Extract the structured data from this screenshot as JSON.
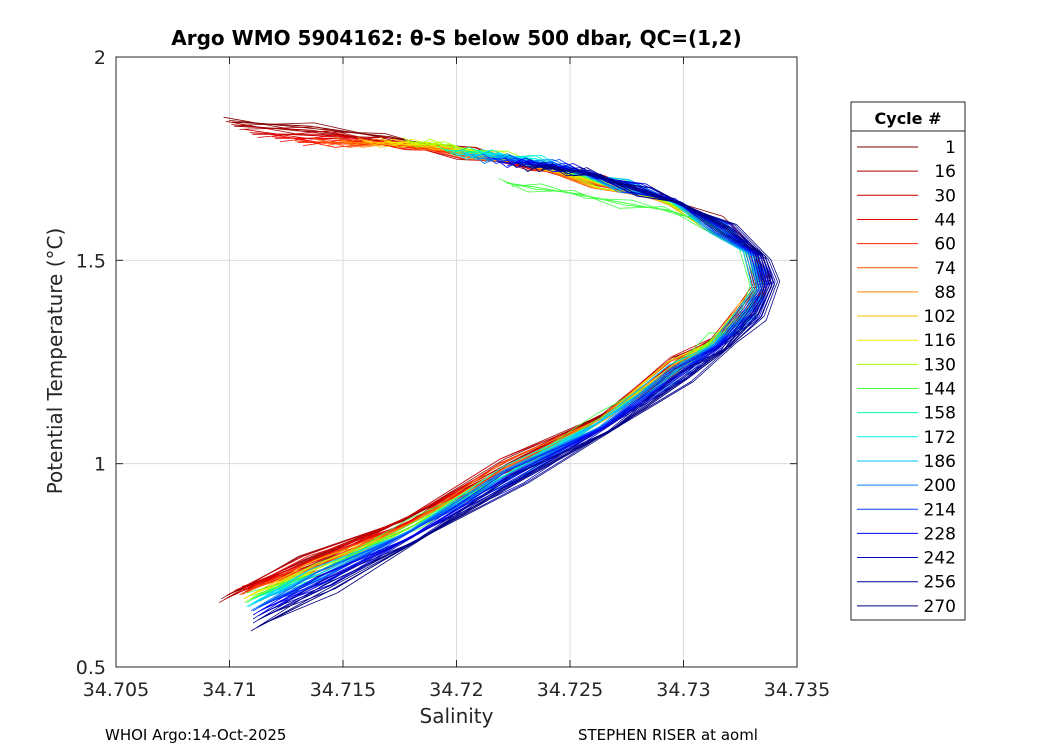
{
  "chart_data": {
    "type": "line",
    "title": "Argo WMO 5904162: θ-S below 500 dbar,  QC=(1,2)",
    "xlabel": "Salinity",
    "ylabel": "Potential Temperature (°C)",
    "xlim": [
      34.705,
      34.735
    ],
    "ylim": [
      0.5,
      2
    ],
    "xticks": [
      "34.705",
      "34.71",
      "34.715",
      "34.72",
      "34.725",
      "34.73",
      "34.735"
    ],
    "yticks": [
      "0.5",
      "1",
      "1.5",
      "2"
    ],
    "grid": true,
    "legend_title": "Cycle #",
    "legend_position": "right-outside",
    "series": [
      {
        "name": "1",
        "color": "#800000",
        "x": [
          34.7101,
          34.7135,
          34.7172,
          34.7205,
          34.7228,
          34.7262,
          34.7295,
          34.7315,
          34.7332,
          34.7336,
          34.733,
          34.7318,
          34.73,
          34.7268,
          34.7225,
          34.718,
          34.7135,
          34.71
        ],
        "y": [
          1.84,
          1.83,
          1.8,
          1.77,
          1.74,
          1.7,
          1.65,
          1.6,
          1.52,
          1.45,
          1.38,
          1.32,
          1.25,
          1.13,
          1.0,
          0.87,
          0.76,
          0.68
        ]
      },
      {
        "name": "16",
        "color": "#a80000",
        "x": [
          34.7102,
          34.7136,
          34.7171,
          34.7204,
          34.7229,
          34.7261,
          34.7294,
          34.7314,
          34.7331,
          34.7335,
          34.7329,
          34.7316,
          34.7299,
          34.7267,
          34.7223,
          34.7179,
          34.7134,
          34.7099
        ],
        "y": [
          1.83,
          1.82,
          1.79,
          1.76,
          1.73,
          1.7,
          1.65,
          1.59,
          1.51,
          1.45,
          1.38,
          1.31,
          1.25,
          1.13,
          1.0,
          0.87,
          0.76,
          0.67
        ]
      },
      {
        "name": "30",
        "color": "#cc0000",
        "x": [
          34.711,
          34.714,
          34.7173,
          34.7206,
          34.723,
          34.7262,
          34.7293,
          34.7313,
          34.733,
          34.7334,
          34.7328,
          34.7316,
          34.7298,
          34.7266,
          34.7223,
          34.7179,
          34.7136,
          34.7103
        ],
        "y": [
          1.81,
          1.81,
          1.79,
          1.77,
          1.74,
          1.7,
          1.64,
          1.59,
          1.51,
          1.45,
          1.38,
          1.32,
          1.25,
          1.12,
          1.0,
          0.87,
          0.76,
          0.69
        ]
      },
      {
        "name": "44",
        "color": "#ee0000",
        "x": [
          34.712,
          34.7145,
          34.7175,
          34.7207,
          34.7231,
          34.7262,
          34.7293,
          34.7313,
          34.733,
          34.7334,
          34.7328,
          34.7316,
          34.7298,
          34.7266,
          34.7223,
          34.718,
          34.7138,
          34.7106
        ],
        "y": [
          1.8,
          1.8,
          1.78,
          1.76,
          1.73,
          1.7,
          1.64,
          1.59,
          1.51,
          1.44,
          1.38,
          1.31,
          1.24,
          1.12,
          0.99,
          0.86,
          0.76,
          0.69
        ]
      },
      {
        "name": "60",
        "color": "#ff2000",
        "x": [
          34.713,
          34.715,
          34.7178,
          34.7208,
          34.7232,
          34.7263,
          34.7293,
          34.7313,
          34.733,
          34.7334,
          34.7328,
          34.7316,
          34.7298,
          34.7266,
          34.7223,
          34.7181,
          34.714,
          34.7108
        ],
        "y": [
          1.79,
          1.79,
          1.78,
          1.76,
          1.73,
          1.7,
          1.64,
          1.59,
          1.51,
          1.44,
          1.38,
          1.31,
          1.24,
          1.12,
          0.99,
          0.86,
          0.75,
          0.69
        ]
      },
      {
        "name": "74",
        "color": "#ff5000",
        "x": [
          34.714,
          34.7156,
          34.7181,
          34.721,
          34.7233,
          34.7263,
          34.7293,
          34.7313,
          34.733,
          34.7334,
          34.7328,
          34.7316,
          34.7298,
          34.7266,
          34.7224,
          34.7182,
          34.7141,
          34.7109
        ],
        "y": [
          1.79,
          1.79,
          1.78,
          1.76,
          1.73,
          1.69,
          1.64,
          1.59,
          1.51,
          1.44,
          1.38,
          1.31,
          1.24,
          1.12,
          0.99,
          0.86,
          0.75,
          0.69
        ]
      },
      {
        "name": "88",
        "color": "#ff8000",
        "x": [
          34.715,
          34.7162,
          34.7184,
          34.7212,
          34.7234,
          34.7264,
          34.7293,
          34.7313,
          34.733,
          34.7334,
          34.7328,
          34.7316,
          34.7297,
          34.7266,
          34.7224,
          34.7182,
          34.7141,
          34.711
        ],
        "y": [
          1.79,
          1.79,
          1.78,
          1.76,
          1.73,
          1.69,
          1.64,
          1.59,
          1.51,
          1.44,
          1.38,
          1.31,
          1.24,
          1.12,
          0.99,
          0.86,
          0.75,
          0.68
        ]
      },
      {
        "name": "102",
        "color": "#ffc000",
        "x": [
          34.716,
          34.717,
          34.7188,
          34.7214,
          34.7236,
          34.7265,
          34.7293,
          34.7313,
          34.733,
          34.7334,
          34.7328,
          34.7316,
          34.7297,
          34.7266,
          34.7224,
          34.7182,
          34.7141,
          34.711
        ],
        "y": [
          1.79,
          1.79,
          1.78,
          1.76,
          1.73,
          1.69,
          1.64,
          1.59,
          1.51,
          1.44,
          1.38,
          1.31,
          1.24,
          1.11,
          0.98,
          0.85,
          0.75,
          0.68
        ]
      },
      {
        "name": "116",
        "color": "#f0f000",
        "x": [
          34.717,
          34.7178,
          34.7193,
          34.7217,
          34.7238,
          34.7266,
          34.7294,
          34.7313,
          34.733,
          34.7334,
          34.7328,
          34.7315,
          34.7297,
          34.7265,
          34.7224,
          34.7182,
          34.7141,
          34.711
        ],
        "y": [
          1.79,
          1.79,
          1.78,
          1.76,
          1.73,
          1.69,
          1.64,
          1.59,
          1.51,
          1.44,
          1.37,
          1.31,
          1.24,
          1.11,
          0.98,
          0.85,
          0.74,
          0.68
        ]
      },
      {
        "name": "130",
        "color": "#a0ff00",
        "x": [
          34.718,
          34.7186,
          34.7198,
          34.722,
          34.724,
          34.7267,
          34.7294,
          34.7313,
          34.733,
          34.7334,
          34.7328,
          34.7315,
          34.7297,
          34.7265,
          34.7224,
          34.7182,
          34.7141,
          34.711
        ],
        "y": [
          1.79,
          1.79,
          1.78,
          1.76,
          1.73,
          1.69,
          1.64,
          1.59,
          1.51,
          1.44,
          1.37,
          1.31,
          1.23,
          1.11,
          0.98,
          0.85,
          0.74,
          0.67
        ]
      },
      {
        "name": "144",
        "color": "#40ff40",
        "x": [
          34.7222,
          34.7235,
          34.7255,
          34.7275,
          34.7295,
          34.7312,
          34.7328,
          34.7333,
          34.733,
          34.7326,
          34.7315,
          34.7297,
          34.7265,
          34.7224,
          34.7182,
          34.7141,
          34.7111
        ],
        "y": [
          1.69,
          1.68,
          1.66,
          1.64,
          1.62,
          1.59,
          1.52,
          1.45,
          1.38,
          1.33,
          1.31,
          1.23,
          1.11,
          0.98,
          0.85,
          0.74,
          0.67
        ]
      },
      {
        "name": "158",
        "color": "#00ffa0",
        "x": [
          34.7195,
          34.7203,
          34.7215,
          34.7232,
          34.7248,
          34.7272,
          34.7296,
          34.7314,
          34.733,
          34.7334,
          34.7328,
          34.7315,
          34.7297,
          34.7265,
          34.7224,
          34.7181,
          34.714,
          34.7111
        ],
        "y": [
          1.77,
          1.77,
          1.76,
          1.75,
          1.72,
          1.69,
          1.64,
          1.59,
          1.51,
          1.44,
          1.37,
          1.3,
          1.23,
          1.11,
          0.98,
          0.84,
          0.73,
          0.67
        ]
      },
      {
        "name": "172",
        "color": "#00f0f0",
        "x": [
          34.72,
          34.7208,
          34.7219,
          34.7235,
          34.725,
          34.7273,
          34.7297,
          34.7315,
          34.733,
          34.7334,
          34.7328,
          34.7315,
          34.7297,
          34.7265,
          34.7224,
          34.7181,
          34.714,
          34.7111
        ],
        "y": [
          1.76,
          1.76,
          1.76,
          1.75,
          1.72,
          1.69,
          1.64,
          1.59,
          1.51,
          1.44,
          1.37,
          1.3,
          1.23,
          1.11,
          0.98,
          0.84,
          0.73,
          0.66
        ]
      },
      {
        "name": "186",
        "color": "#00c0ff",
        "x": [
          34.7205,
          34.7212,
          34.7222,
          34.7237,
          34.7252,
          34.7274,
          34.7297,
          34.7315,
          34.733,
          34.7334,
          34.7328,
          34.7315,
          34.7297,
          34.7265,
          34.7224,
          34.7181,
          34.714,
          34.7112
        ],
        "y": [
          1.76,
          1.76,
          1.75,
          1.74,
          1.72,
          1.69,
          1.64,
          1.58,
          1.51,
          1.44,
          1.37,
          1.3,
          1.23,
          1.11,
          0.97,
          0.84,
          0.73,
          0.66
        ]
      },
      {
        "name": "200",
        "color": "#0080ff",
        "x": [
          34.721,
          34.7216,
          34.7226,
          34.724,
          34.7254,
          34.7275,
          34.7298,
          34.7316,
          34.7331,
          34.7335,
          34.7329,
          34.7316,
          34.7297,
          34.7266,
          34.7224,
          34.7181,
          34.7141,
          34.7113
        ],
        "y": [
          1.75,
          1.75,
          1.75,
          1.74,
          1.72,
          1.68,
          1.64,
          1.58,
          1.51,
          1.44,
          1.37,
          1.3,
          1.22,
          1.1,
          0.97,
          0.84,
          0.72,
          0.65
        ]
      },
      {
        "name": "214",
        "color": "#0040ff",
        "x": [
          34.7215,
          34.7221,
          34.723,
          34.7243,
          34.7257,
          34.7277,
          34.7299,
          34.7317,
          34.7332,
          34.7336,
          34.733,
          34.7317,
          34.7298,
          34.7267,
          34.7225,
          34.7182,
          34.7142,
          34.7114
        ],
        "y": [
          1.75,
          1.75,
          1.74,
          1.74,
          1.71,
          1.68,
          1.64,
          1.58,
          1.51,
          1.44,
          1.37,
          1.3,
          1.22,
          1.1,
          0.97,
          0.84,
          0.72,
          0.65
        ]
      },
      {
        "name": "228",
        "color": "#0000ff",
        "x": [
          34.722,
          34.7226,
          34.7234,
          34.7246,
          34.7259,
          34.7279,
          34.73,
          34.7318,
          34.7333,
          34.7337,
          34.7331,
          34.7318,
          34.7299,
          34.7268,
          34.7226,
          34.7183,
          34.7142,
          34.7114
        ],
        "y": [
          1.74,
          1.74,
          1.74,
          1.73,
          1.71,
          1.68,
          1.64,
          1.58,
          1.51,
          1.44,
          1.37,
          1.3,
          1.22,
          1.1,
          0.97,
          0.83,
          0.71,
          0.64
        ]
      },
      {
        "name": "242",
        "color": "#0000c8",
        "x": [
          34.7225,
          34.723,
          34.7238,
          34.7249,
          34.7262,
          34.7281,
          34.7301,
          34.7319,
          34.7334,
          34.7338,
          34.7332,
          34.7319,
          34.73,
          34.7269,
          34.7227,
          34.7184,
          34.7143,
          34.7114
        ],
        "y": [
          1.74,
          1.74,
          1.73,
          1.73,
          1.71,
          1.68,
          1.63,
          1.58,
          1.51,
          1.44,
          1.37,
          1.3,
          1.22,
          1.1,
          0.96,
          0.83,
          0.71,
          0.63
        ]
      },
      {
        "name": "256",
        "color": "#000096",
        "x": [
          34.723,
          34.7235,
          34.7242,
          34.7252,
          34.7264,
          34.7283,
          34.7302,
          34.732,
          34.7335,
          34.7339,
          34.7333,
          34.732,
          34.7301,
          34.727,
          34.7228,
          34.7185,
          34.7144,
          34.7114
        ],
        "y": [
          1.73,
          1.73,
          1.73,
          1.72,
          1.7,
          1.67,
          1.63,
          1.58,
          1.51,
          1.44,
          1.37,
          1.29,
          1.21,
          1.09,
          0.96,
          0.82,
          0.7,
          0.62
        ]
      },
      {
        "name": "270",
        "color": "#000080",
        "x": [
          34.7235,
          34.724,
          34.7246,
          34.7255,
          34.7267,
          34.7284,
          34.7303,
          34.7321,
          34.7336,
          34.734,
          34.7334,
          34.7321,
          34.7302,
          34.7271,
          34.7229,
          34.7186,
          34.7145,
          34.7113
        ],
        "y": [
          1.73,
          1.73,
          1.72,
          1.72,
          1.7,
          1.67,
          1.63,
          1.58,
          1.51,
          1.44,
          1.36,
          1.29,
          1.21,
          1.09,
          0.96,
          0.82,
          0.69,
          0.6
        ]
      }
    ]
  },
  "footer": {
    "left": "WHOI Argo:14-Oct-2025",
    "right": "STEPHEN RISER at aoml"
  }
}
